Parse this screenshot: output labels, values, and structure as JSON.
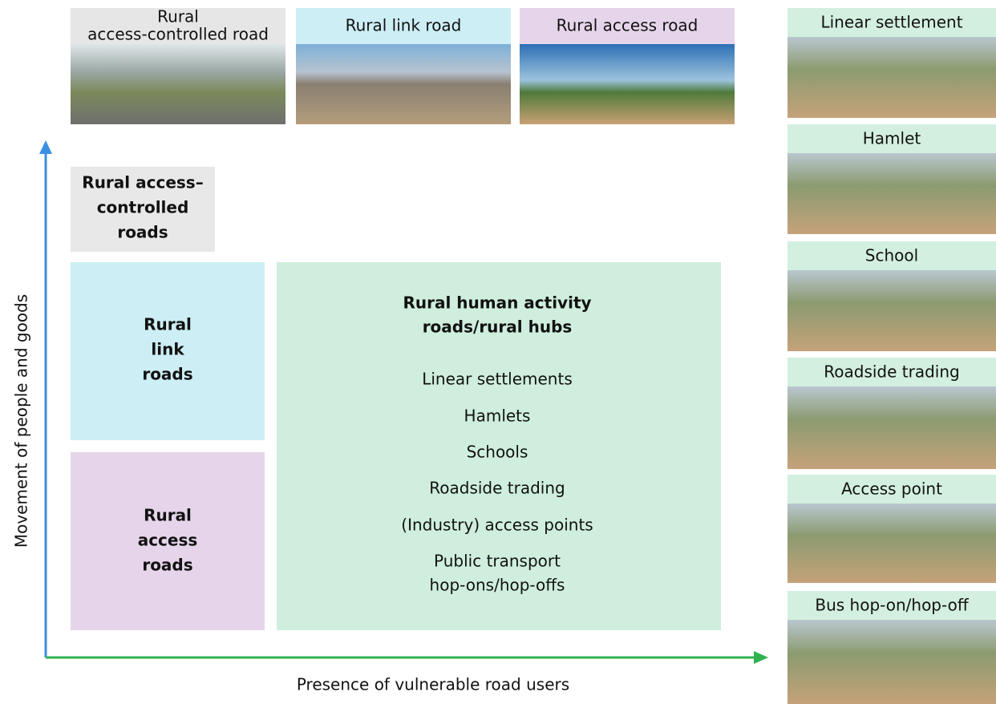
{
  "top_images": [
    {
      "label": [
        "Rural",
        "access-controlled road"
      ]
    },
    {
      "label": [
        "Rural link road"
      ]
    },
    {
      "label": [
        "Rural access road"
      ]
    }
  ],
  "axes": {
    "y_label": "Movement of people and goods",
    "x_label": "Presence of vulnerable road users"
  },
  "boxes": {
    "access_controlled": [
      "Rural access–",
      "controlled",
      "roads"
    ],
    "link": [
      "Rural",
      "link",
      "roads"
    ],
    "access": [
      "Rural",
      "access",
      "roads"
    ],
    "hub": {
      "title": [
        "Rural human activity",
        "roads/rural hubs"
      ],
      "items": [
        [
          "Linear settlements"
        ],
        [
          "Hamlets"
        ],
        [
          "Schools"
        ],
        [
          "Roadside trading"
        ],
        [
          "(Industry) access points"
        ],
        [
          "Public transport",
          "hop-ons/hop-offs"
        ]
      ]
    }
  },
  "side_images": [
    "Linear settlement",
    "Hamlet",
    "School",
    "Roadside trading",
    "Access point",
    "Bus hop-on/hop-off"
  ]
}
